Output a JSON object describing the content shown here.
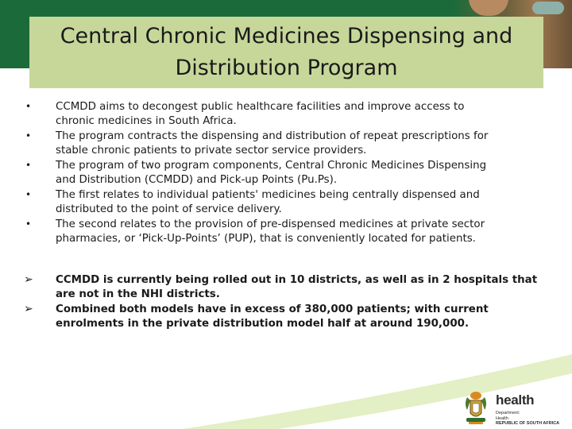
{
  "title": {
    "line1": "Central Chronic Medicines Dispensing and",
    "line2": "Distribution Program"
  },
  "bullets": [
    {
      "line1": "CCMDD  aims to decongest public healthcare facilities and improve access to",
      "line2": "chronic medicines in South Africa."
    },
    {
      "line1": "The program contracts the dispensing and distribution of repeat prescriptions for",
      "line2": "stable chronic patients to private sector service providers."
    },
    {
      "line1": "The program of two program components, Central Chronic Medicines Dispensing",
      "line2": "and Distribution (CCMDD) and Pick-up Points (Pu.Ps)."
    },
    {
      "line1": "The first relates to individual patients' medicines being centrally dispensed and",
      "line2": "distributed to the point of service delivery."
    },
    {
      "line1": "The second relates to the provision of pre-dispensed medicines at private sector",
      "line2": "pharmacies, or ‘Pick-Up-Points’ (PUP), that is conveniently located for patients."
    }
  ],
  "arrow_points": [
    {
      "line1": "CCMDD is currently being rolled out in 10 districts, as well as in 2 hospitals that",
      "line2": "are not in the NHI districts."
    },
    {
      "line1": "Combined both models have in excess of 380,000 patients; with current",
      "line2": "enrolments in the private distribution model half at around 190,000."
    }
  ],
  "logo": {
    "word": "health",
    "line1": "Department:",
    "line2": "Health",
    "line3": "REPUBLIC OF SOUTH AFRICA"
  },
  "colors": {
    "header_green": "#1b6b3a",
    "title_box": "#c7d79a",
    "footer_arc": "#cfe3a0"
  },
  "icons": {
    "bullet": "bullet-dot-icon",
    "arrow": "arrow-bullet-icon",
    "coat_of_arms": "coat-of-arms-icon"
  }
}
